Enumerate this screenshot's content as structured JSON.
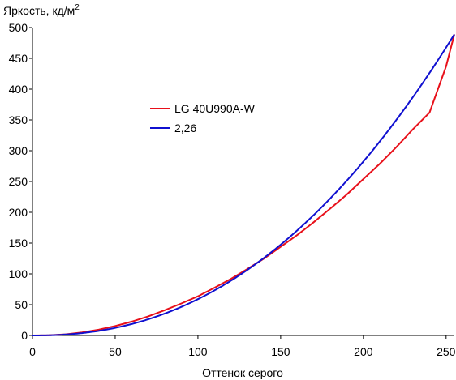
{
  "chart_data": {
    "type": "line",
    "ylabel": "Яркость, кд/м",
    "ylabel_sup": "2",
    "xlabel": "Оттенок серого",
    "xlim": [
      0,
      255
    ],
    "ylim": [
      0,
      500
    ],
    "xticks": [
      0,
      50,
      100,
      150,
      200,
      250
    ],
    "yticks": [
      0,
      50,
      100,
      150,
      200,
      250,
      300,
      350,
      400,
      450,
      500
    ],
    "legend_position": "center-left",
    "grid": false,
    "series": [
      {
        "name": "LG 40U990A-W",
        "color": "#e8101a",
        "x": [
          0,
          10,
          20,
          30,
          40,
          50,
          60,
          70,
          80,
          90,
          100,
          110,
          120,
          130,
          140,
          150,
          160,
          170,
          180,
          190,
          200,
          210,
          220,
          230,
          240,
          250,
          255
        ],
        "y": [
          0,
          0.3,
          1.9,
          5,
          9.5,
          15.3,
          22.5,
          31,
          41,
          52,
          63.5,
          77.5,
          92,
          108,
          125,
          144,
          163,
          184,
          206,
          229,
          254,
          279,
          306,
          335,
          362,
          437,
          489
        ]
      },
      {
        "name": "2,26",
        "color": "#1010d0",
        "gamma": 2.26,
        "x": [
          0,
          10,
          20,
          30,
          40,
          50,
          60,
          70,
          80,
          90,
          100,
          110,
          120,
          130,
          140,
          150,
          160,
          170,
          180,
          190,
          200,
          210,
          220,
          230,
          240,
          250,
          255
        ],
        "y": [
          0,
          0.3,
          1.4,
          3.6,
          7.1,
          11.8,
          17.8,
          25.1,
          34,
          44.2,
          55.9,
          69,
          84,
          100.3,
          118.3,
          137.6,
          158.8,
          181.5,
          205.6,
          231.3,
          258.8,
          287.6,
          318.3,
          350.8,
          384.8,
          420.4,
          489
        ]
      }
    ]
  }
}
